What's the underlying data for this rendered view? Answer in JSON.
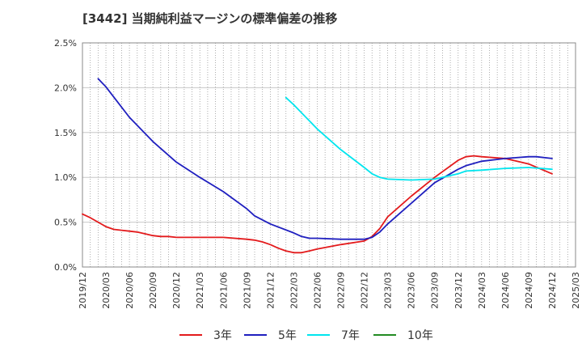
{
  "chart_data": {
    "type": "line",
    "title": "[3442]  当期純利益マージンの標準偏差の推移",
    "xlabel": "",
    "ylabel": "",
    "ylim": [
      0,
      0.025
    ],
    "y_ticks": [
      0,
      0.005,
      0.01,
      0.015,
      0.02,
      0.025
    ],
    "y_tick_labels": [
      "0.0%",
      "0.5%",
      "1.0%",
      "1.5%",
      "2.0%",
      "2.5%"
    ],
    "x_ticks": [
      "2019/12",
      "2020/03",
      "2020/06",
      "2020/09",
      "2020/12",
      "2021/03",
      "2021/06",
      "2021/09",
      "2021/12",
      "2022/03",
      "2022/06",
      "2022/09",
      "2022/12",
      "2023/03",
      "2023/06",
      "2023/09",
      "2023/12",
      "2024/03",
      "2024/06",
      "2024/09",
      "2024/12",
      "2025/03"
    ],
    "grid": "vertical-dotted-monthly, horizontal-solid",
    "legend_position": "bottom",
    "series": [
      {
        "name": "3年",
        "color": "#e31a1c",
        "points": [
          [
            "2019/12",
            0.0059
          ],
          [
            "2020/01",
            0.0055
          ],
          [
            "2020/02",
            0.005
          ],
          [
            "2020/03",
            0.0045
          ],
          [
            "2020/04",
            0.0042
          ],
          [
            "2020/05",
            0.0041
          ],
          [
            "2020/06",
            0.004
          ],
          [
            "2020/07",
            0.0039
          ],
          [
            "2020/08",
            0.0037
          ],
          [
            "2020/09",
            0.0035
          ],
          [
            "2020/10",
            0.0034
          ],
          [
            "2020/11",
            0.0034
          ],
          [
            "2020/12",
            0.0033
          ],
          [
            "2021/03",
            0.0033
          ],
          [
            "2021/06",
            0.0033
          ],
          [
            "2021/09",
            0.0031
          ],
          [
            "2021/10",
            0.003
          ],
          [
            "2021/11",
            0.0028
          ],
          [
            "2021/12",
            0.0025
          ],
          [
            "2022/01",
            0.0021
          ],
          [
            "2022/02",
            0.0018
          ],
          [
            "2022/03",
            0.0016
          ],
          [
            "2022/04",
            0.0016
          ],
          [
            "2022/05",
            0.0018
          ],
          [
            "2022/06",
            0.002
          ],
          [
            "2022/09",
            0.0025
          ],
          [
            "2022/12",
            0.0029
          ],
          [
            "2023/01",
            0.0034
          ],
          [
            "2023/02",
            0.0043
          ],
          [
            "2023/03",
            0.0056
          ],
          [
            "2023/06",
            0.0079
          ],
          [
            "2023/09",
            0.01
          ],
          [
            "2023/12",
            0.0119
          ],
          [
            "2024/01",
            0.0123
          ],
          [
            "2024/02",
            0.0124
          ],
          [
            "2024/03",
            0.0123
          ],
          [
            "2024/06",
            0.0121
          ],
          [
            "2024/09",
            0.0115
          ],
          [
            "2024/12",
            0.0104
          ]
        ]
      },
      {
        "name": "5年",
        "color": "#1f1fbf",
        "points": [
          [
            "2020/02",
            0.021
          ],
          [
            "2020/03",
            0.0201
          ],
          [
            "2020/06",
            0.0167
          ],
          [
            "2020/09",
            0.014
          ],
          [
            "2020/12",
            0.0117
          ],
          [
            "2021/03",
            0.01
          ],
          [
            "2021/06",
            0.0084
          ],
          [
            "2021/09",
            0.0065
          ],
          [
            "2021/10",
            0.0057
          ],
          [
            "2021/12",
            0.0048
          ],
          [
            "2022/03",
            0.0038
          ],
          [
            "2022/04",
            0.0034
          ],
          [
            "2022/05",
            0.0032
          ],
          [
            "2022/06",
            0.0032
          ],
          [
            "2022/09",
            0.0031
          ],
          [
            "2022/12",
            0.0031
          ],
          [
            "2023/01",
            0.0033
          ],
          [
            "2023/02",
            0.0039
          ],
          [
            "2023/03",
            0.0048
          ],
          [
            "2023/06",
            0.0071
          ],
          [
            "2023/09",
            0.0094
          ],
          [
            "2023/12",
            0.0109
          ],
          [
            "2024/01",
            0.0113
          ],
          [
            "2024/03",
            0.0118
          ],
          [
            "2024/06",
            0.0121
          ],
          [
            "2024/09",
            0.0123
          ],
          [
            "2024/10",
            0.0123
          ],
          [
            "2024/12",
            0.0121
          ]
        ]
      },
      {
        "name": "7年",
        "color": "#00e5ee",
        "points": [
          [
            "2022/02",
            0.0189
          ],
          [
            "2022/03",
            0.0181
          ],
          [
            "2022/06",
            0.0154
          ],
          [
            "2022/09",
            0.0131
          ],
          [
            "2022/12",
            0.0111
          ],
          [
            "2023/01",
            0.0104
          ],
          [
            "2023/02",
            0.01
          ],
          [
            "2023/03",
            0.0098
          ],
          [
            "2023/06",
            0.0097
          ],
          [
            "2023/09",
            0.0098
          ],
          [
            "2023/12",
            0.0104
          ],
          [
            "2024/01",
            0.0107
          ],
          [
            "2024/03",
            0.0108
          ],
          [
            "2024/06",
            0.011
          ],
          [
            "2024/09",
            0.0111
          ],
          [
            "2024/12",
            0.0109
          ]
        ]
      },
      {
        "name": "10年",
        "color": "#228b22",
        "points": []
      }
    ]
  }
}
